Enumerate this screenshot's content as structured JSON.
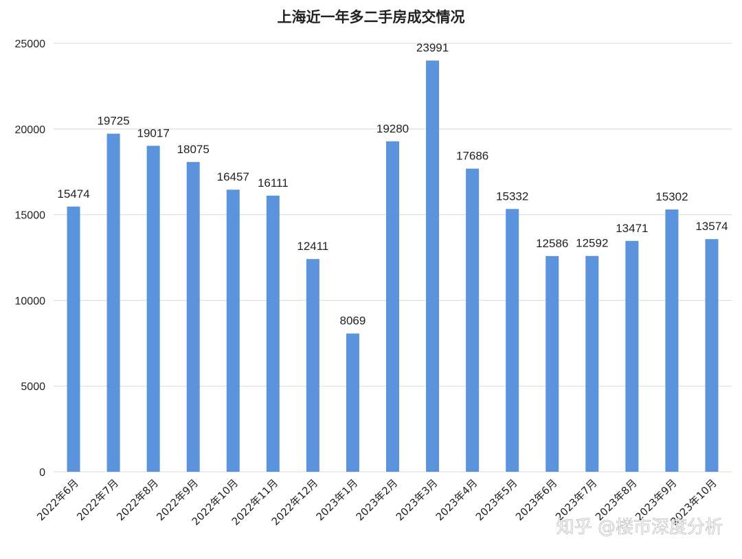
{
  "chart_data": {
    "type": "bar",
    "title": "上海近一年多二手房成交情况",
    "categories": [
      "2022年6月",
      "2022年7月",
      "2022年8月",
      "2022年9月",
      "2022年10月",
      "2022年11月",
      "2022年12月",
      "2023年1月",
      "2023年2月",
      "2023年3月",
      "2023年4月",
      "2023年5月",
      "2023年6月",
      "2023年7月",
      "2023年8月",
      "2023年9月",
      "2023年10月"
    ],
    "values": [
      15474,
      19725,
      19017,
      18075,
      16457,
      16111,
      12411,
      8069,
      19280,
      23991,
      17686,
      15332,
      12586,
      12592,
      13471,
      15302,
      13574
    ],
    "ylim": [
      0,
      25000
    ],
    "yticks": [
      0,
      5000,
      10000,
      15000,
      20000,
      25000
    ],
    "grid": true,
    "legend": "none",
    "bar_color": "#5b93dd",
    "grid_color": "#d9d9d9"
  },
  "watermark": {
    "text": "知乎 @楼市深度分析"
  }
}
